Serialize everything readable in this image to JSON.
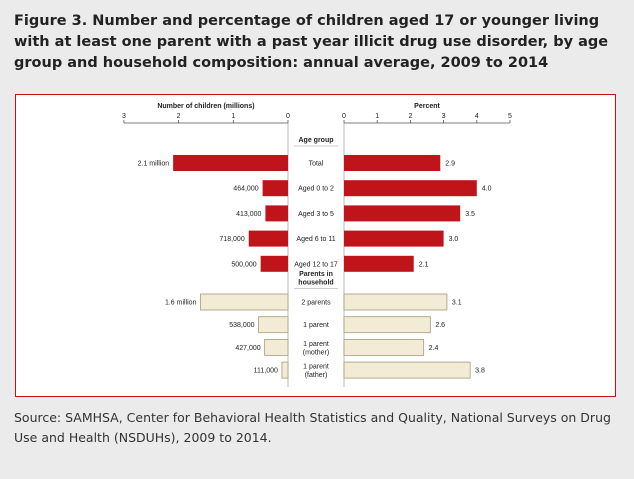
{
  "title": "Figure 3. Number and percentage of children aged 17 or younger living with at least one parent with a past year illicit drug use disorder, by age group and household composition: annual average, 2009 to 2014",
  "source": "Source: SAMHSA, Center for Behavioral Health Statistics and Quality, National Surveys on Drug Use and Health (NSDUHs), 2009 to 2014.",
  "colors": {
    "age_group_bar": "#c0141b",
    "household_bar": "#f2ebd6",
    "household_bar_border": "#a89a78",
    "axis": "#555555",
    "frame": "#c0141b"
  },
  "chart_data": {
    "type": "bar",
    "orientation": "horizontal",
    "layout": "back-to-back",
    "left_axis": {
      "label": "Number of children (millions)",
      "ticks": [
        "3",
        "2",
        "1",
        "0"
      ],
      "range": [
        3,
        0
      ]
    },
    "right_axis": {
      "label": "Percent",
      "ticks": [
        "0",
        "1",
        "2",
        "3",
        "4",
        "5"
      ],
      "range": [
        0,
        5
      ]
    },
    "groups": [
      {
        "heading": [
          "Age group"
        ],
        "color_key": "age_group_bar",
        "rows": [
          {
            "category": [
              "Total"
            ],
            "count": 2.1,
            "count_label": "2.1 million",
            "percent": 2.9,
            "percent_label": "2.9"
          },
          {
            "category": [
              "Aged 0 to 2"
            ],
            "count": 0.464,
            "count_label": "464,000",
            "percent": 4.0,
            "percent_label": "4.0"
          },
          {
            "category": [
              "Aged 3 to 5"
            ],
            "count": 0.413,
            "count_label": "413,000",
            "percent": 3.5,
            "percent_label": "3.5"
          },
          {
            "category": [
              "Aged 6 to 11"
            ],
            "count": 0.718,
            "count_label": "718,000",
            "percent": 3.0,
            "percent_label": "3.0"
          },
          {
            "category": [
              "Aged 12 to 17"
            ],
            "count": 0.5,
            "count_label": "500,000",
            "percent": 2.1,
            "percent_label": "2.1"
          }
        ]
      },
      {
        "heading": [
          "Parents in",
          "household"
        ],
        "color_key": "household_bar",
        "rows": [
          {
            "category": [
              "2 parents"
            ],
            "count": 1.6,
            "count_label": "1.6 million",
            "percent": 3.1,
            "percent_label": "3.1"
          },
          {
            "category": [
              "1 parent"
            ],
            "count": 0.538,
            "count_label": "538,000",
            "percent": 2.6,
            "percent_label": "2.6"
          },
          {
            "category": [
              "1 parent",
              "(mother)"
            ],
            "count": 0.427,
            "count_label": "427,000",
            "percent": 2.4,
            "percent_label": "2.4"
          },
          {
            "category": [
              "1 parent",
              "(father)"
            ],
            "count": 0.111,
            "count_label": "111,000",
            "percent": 3.8,
            "percent_label": "3.8"
          }
        ]
      }
    ]
  }
}
